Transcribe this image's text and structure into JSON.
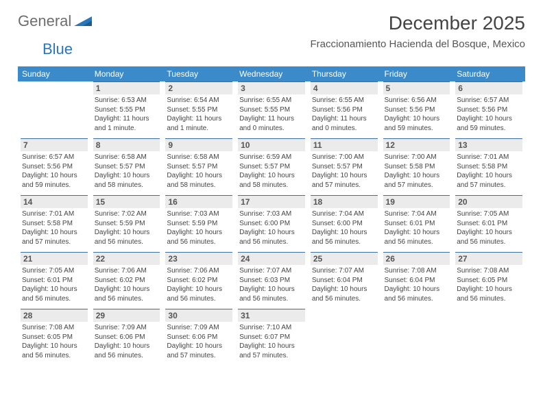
{
  "brand": {
    "part1": "General",
    "part2": "Blue"
  },
  "title": "December 2025",
  "location": "Fraccionamiento Hacienda del Bosque, Mexico",
  "colors": {
    "header_bg": "#3b8bca",
    "header_text": "#ffffff",
    "daynum_bg": "#ebebeb",
    "daynum_border": "#3b6fa0",
    "body_text": "#444444",
    "logo_gray": "#6d6d6d",
    "logo_blue": "#2976bb"
  },
  "weekdays": [
    "Sunday",
    "Monday",
    "Tuesday",
    "Wednesday",
    "Thursday",
    "Friday",
    "Saturday"
  ],
  "weeks": [
    [
      null,
      {
        "n": "1",
        "sr": "Sunrise: 6:53 AM",
        "ss": "Sunset: 5:55 PM",
        "dl": "Daylight: 11 hours and 1 minute."
      },
      {
        "n": "2",
        "sr": "Sunrise: 6:54 AM",
        "ss": "Sunset: 5:55 PM",
        "dl": "Daylight: 11 hours and 1 minute."
      },
      {
        "n": "3",
        "sr": "Sunrise: 6:55 AM",
        "ss": "Sunset: 5:55 PM",
        "dl": "Daylight: 11 hours and 0 minutes."
      },
      {
        "n": "4",
        "sr": "Sunrise: 6:55 AM",
        "ss": "Sunset: 5:56 PM",
        "dl": "Daylight: 11 hours and 0 minutes."
      },
      {
        "n": "5",
        "sr": "Sunrise: 6:56 AM",
        "ss": "Sunset: 5:56 PM",
        "dl": "Daylight: 10 hours and 59 minutes."
      },
      {
        "n": "6",
        "sr": "Sunrise: 6:57 AM",
        "ss": "Sunset: 5:56 PM",
        "dl": "Daylight: 10 hours and 59 minutes."
      }
    ],
    [
      {
        "n": "7",
        "sr": "Sunrise: 6:57 AM",
        "ss": "Sunset: 5:56 PM",
        "dl": "Daylight: 10 hours and 59 minutes."
      },
      {
        "n": "8",
        "sr": "Sunrise: 6:58 AM",
        "ss": "Sunset: 5:57 PM",
        "dl": "Daylight: 10 hours and 58 minutes."
      },
      {
        "n": "9",
        "sr": "Sunrise: 6:58 AM",
        "ss": "Sunset: 5:57 PM",
        "dl": "Daylight: 10 hours and 58 minutes."
      },
      {
        "n": "10",
        "sr": "Sunrise: 6:59 AM",
        "ss": "Sunset: 5:57 PM",
        "dl": "Daylight: 10 hours and 58 minutes."
      },
      {
        "n": "11",
        "sr": "Sunrise: 7:00 AM",
        "ss": "Sunset: 5:57 PM",
        "dl": "Daylight: 10 hours and 57 minutes."
      },
      {
        "n": "12",
        "sr": "Sunrise: 7:00 AM",
        "ss": "Sunset: 5:58 PM",
        "dl": "Daylight: 10 hours and 57 minutes."
      },
      {
        "n": "13",
        "sr": "Sunrise: 7:01 AM",
        "ss": "Sunset: 5:58 PM",
        "dl": "Daylight: 10 hours and 57 minutes."
      }
    ],
    [
      {
        "n": "14",
        "sr": "Sunrise: 7:01 AM",
        "ss": "Sunset: 5:58 PM",
        "dl": "Daylight: 10 hours and 57 minutes."
      },
      {
        "n": "15",
        "sr": "Sunrise: 7:02 AM",
        "ss": "Sunset: 5:59 PM",
        "dl": "Daylight: 10 hours and 56 minutes."
      },
      {
        "n": "16",
        "sr": "Sunrise: 7:03 AM",
        "ss": "Sunset: 5:59 PM",
        "dl": "Daylight: 10 hours and 56 minutes."
      },
      {
        "n": "17",
        "sr": "Sunrise: 7:03 AM",
        "ss": "Sunset: 6:00 PM",
        "dl": "Daylight: 10 hours and 56 minutes."
      },
      {
        "n": "18",
        "sr": "Sunrise: 7:04 AM",
        "ss": "Sunset: 6:00 PM",
        "dl": "Daylight: 10 hours and 56 minutes."
      },
      {
        "n": "19",
        "sr": "Sunrise: 7:04 AM",
        "ss": "Sunset: 6:01 PM",
        "dl": "Daylight: 10 hours and 56 minutes."
      },
      {
        "n": "20",
        "sr": "Sunrise: 7:05 AM",
        "ss": "Sunset: 6:01 PM",
        "dl": "Daylight: 10 hours and 56 minutes."
      }
    ],
    [
      {
        "n": "21",
        "sr": "Sunrise: 7:05 AM",
        "ss": "Sunset: 6:01 PM",
        "dl": "Daylight: 10 hours and 56 minutes."
      },
      {
        "n": "22",
        "sr": "Sunrise: 7:06 AM",
        "ss": "Sunset: 6:02 PM",
        "dl": "Daylight: 10 hours and 56 minutes."
      },
      {
        "n": "23",
        "sr": "Sunrise: 7:06 AM",
        "ss": "Sunset: 6:02 PM",
        "dl": "Daylight: 10 hours and 56 minutes."
      },
      {
        "n": "24",
        "sr": "Sunrise: 7:07 AM",
        "ss": "Sunset: 6:03 PM",
        "dl": "Daylight: 10 hours and 56 minutes."
      },
      {
        "n": "25",
        "sr": "Sunrise: 7:07 AM",
        "ss": "Sunset: 6:04 PM",
        "dl": "Daylight: 10 hours and 56 minutes."
      },
      {
        "n": "26",
        "sr": "Sunrise: 7:08 AM",
        "ss": "Sunset: 6:04 PM",
        "dl": "Daylight: 10 hours and 56 minutes."
      },
      {
        "n": "27",
        "sr": "Sunrise: 7:08 AM",
        "ss": "Sunset: 6:05 PM",
        "dl": "Daylight: 10 hours and 56 minutes."
      }
    ],
    [
      {
        "n": "28",
        "sr": "Sunrise: 7:08 AM",
        "ss": "Sunset: 6:05 PM",
        "dl": "Daylight: 10 hours and 56 minutes."
      },
      {
        "n": "29",
        "sr": "Sunrise: 7:09 AM",
        "ss": "Sunset: 6:06 PM",
        "dl": "Daylight: 10 hours and 56 minutes."
      },
      {
        "n": "30",
        "sr": "Sunrise: 7:09 AM",
        "ss": "Sunset: 6:06 PM",
        "dl": "Daylight: 10 hours and 57 minutes."
      },
      {
        "n": "31",
        "sr": "Sunrise: 7:10 AM",
        "ss": "Sunset: 6:07 PM",
        "dl": "Daylight: 10 hours and 57 minutes."
      },
      null,
      null,
      null
    ]
  ]
}
